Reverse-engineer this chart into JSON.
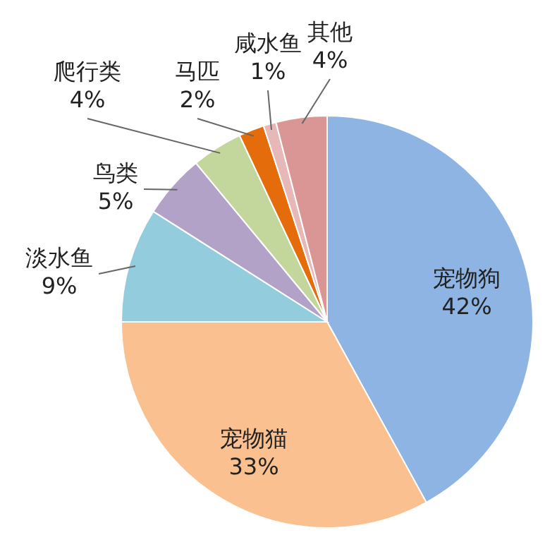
{
  "chart_data": {
    "type": "pie",
    "categories": [
      "宠物狗",
      "宠物猫",
      "淡水鱼",
      "鸟类",
      "爬行类",
      "马匹",
      "咸水鱼",
      "其他"
    ],
    "values": [
      42,
      33,
      9,
      5,
      4,
      2,
      1,
      4
    ],
    "value_labels": [
      "42%",
      "33%",
      "9%",
      "5%",
      "4%",
      "2%",
      "1%",
      "4%"
    ],
    "colors": [
      "#8eb4e3",
      "#fac090",
      "#93cddd",
      "#b3a2c7",
      "#c3d69b",
      "#e46c0a",
      "#e6b9b8",
      "#d99694"
    ],
    "legend": false
  }
}
